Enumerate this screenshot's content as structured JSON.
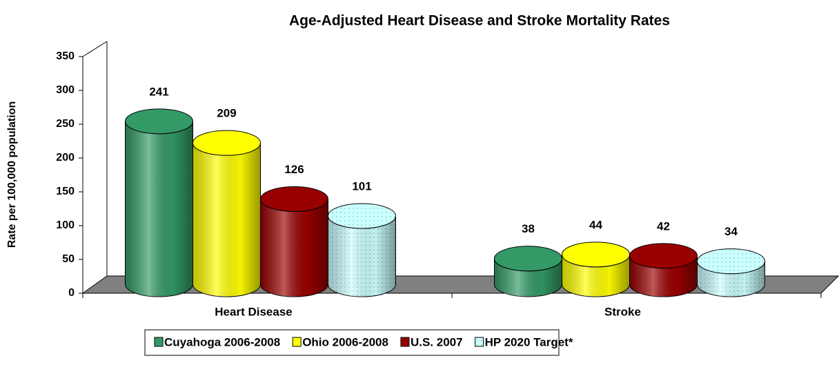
{
  "chart_data": {
    "type": "bar",
    "title": "Age-Adjusted Heart Disease and Stroke Mortality Rates",
    "y_label": "Rate per 100,000 population",
    "categories": [
      "Heart Disease",
      "Stroke"
    ],
    "series": [
      {
        "name": "Cuyahoga 2006-2008",
        "color": "#339966",
        "values": [
          241,
          38
        ]
      },
      {
        "name": "Ohio 2006-2008",
        "color": "#ffff00",
        "values": [
          209,
          44
        ]
      },
      {
        "name": "U.S. 2007",
        "color": "#990000",
        "values": [
          126,
          42
        ]
      },
      {
        "name": "HP 2020 Target*",
        "color": "#ccffff",
        "values": [
          101,
          34
        ]
      }
    ],
    "ylim": [
      0,
      350
    ],
    "yticks": [
      0,
      50,
      100,
      150,
      200,
      250,
      300,
      350
    ]
  }
}
